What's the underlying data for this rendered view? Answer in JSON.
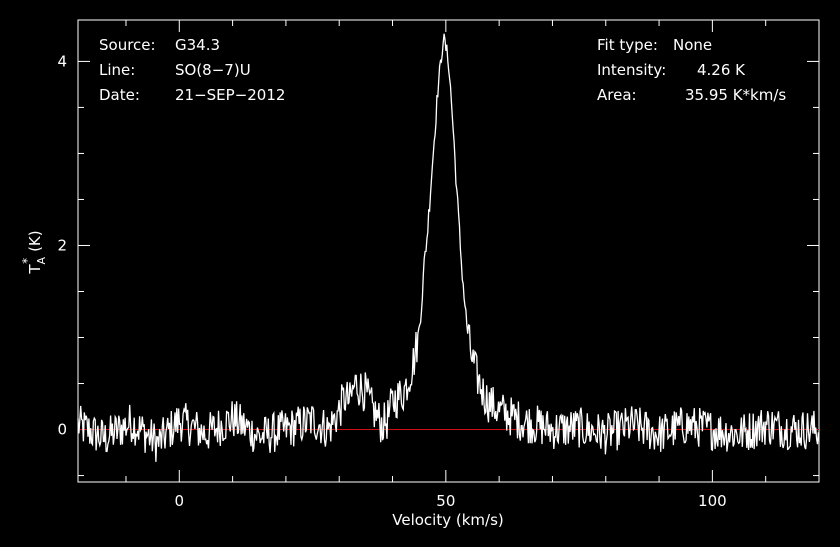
{
  "header": {
    "left": [
      {
        "key": "Source:",
        "value": "G34.3"
      },
      {
        "key": "Line:",
        "value": "SO(8−7)U"
      },
      {
        "key": "Date:",
        "value": "21−SEP−2012"
      }
    ],
    "right": [
      {
        "key": "Fit type:",
        "value": "None"
      },
      {
        "key": "Intensity:",
        "value": "4.26 K"
      },
      {
        "key": "Area:",
        "value": "35.95 K*km/s"
      }
    ]
  },
  "colors": {
    "background": "#000000",
    "foreground": "#ffffff",
    "baseline": "#d01010"
  },
  "chart_data": {
    "type": "line",
    "xlabel": "Velocity (km/s)",
    "ylabel_main": "T",
    "ylabel_sup": "*",
    "ylabel_sub": "A",
    "ylabel_unit": "(K)",
    "xlim": [
      -19,
      120
    ],
    "ylim": [
      -0.57,
      4.45
    ],
    "xticks": [
      {
        "value": 0,
        "label": "0"
      },
      {
        "value": 50,
        "label": "50"
      },
      {
        "value": 100,
        "label": "100"
      }
    ],
    "yticks": [
      {
        "value": 0,
        "label": "0"
      },
      {
        "value": 2,
        "label": "2"
      },
      {
        "value": 4,
        "label": "4"
      }
    ],
    "baseline": 0,
    "series": [
      {
        "x": [
          -19,
          -14,
          -9,
          -4,
          0,
          5,
          10,
          15,
          20,
          25,
          28,
          30,
          31,
          32,
          33,
          34,
          35,
          36,
          37,
          38,
          39,
          40,
          41,
          42,
          43,
          44,
          44.5,
          45,
          45.5,
          46,
          46.5,
          47,
          47.5,
          48,
          48.5,
          49,
          49.5,
          50,
          50.5,
          51,
          51.5,
          52,
          52.5,
          53,
          53.5,
          54,
          54.5,
          55,
          55.5,
          56,
          57,
          58,
          59,
          60,
          61,
          62,
          63,
          64,
          65,
          67,
          70,
          75,
          80,
          85,
          90,
          95,
          100,
          105,
          110,
          115,
          120
        ],
        "y": [
          0.05,
          -0.1,
          0.08,
          -0.15,
          0.1,
          -0.05,
          0.12,
          -0.08,
          0.0,
          0.1,
          0.0,
          0.2,
          0.35,
          0.3,
          0.5,
          0.45,
          0.4,
          0.25,
          0.15,
          0.05,
          0.1,
          0.3,
          0.35,
          0.4,
          0.55,
          0.75,
          0.9,
          1.1,
          1.4,
          1.85,
          2.1,
          2.5,
          2.9,
          3.3,
          3.7,
          3.95,
          4.26,
          4.15,
          4.0,
          3.6,
          3.15,
          2.65,
          2.2,
          1.75,
          1.4,
          1.1,
          0.9,
          0.75,
          0.65,
          0.55,
          0.4,
          0.3,
          0.25,
          0.2,
          0.18,
          0.15,
          0.12,
          0.1,
          0.08,
          0.05,
          0.0,
          0.02,
          -0.05,
          0.05,
          -0.05,
          0.05,
          0.0,
          -0.05,
          0.05,
          0.0,
          0.0
        ]
      }
    ],
    "grid": false
  }
}
